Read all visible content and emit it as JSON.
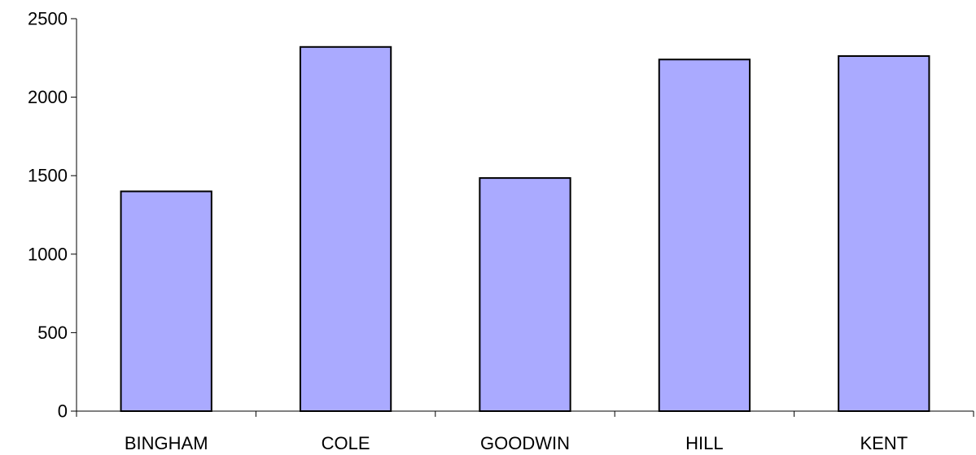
{
  "chart_data": {
    "type": "bar",
    "title": "",
    "xlabel": "",
    "ylabel": "",
    "categories": [
      "BINGHAM",
      "COLE",
      "GOODWIN",
      "HILL",
      "KENT"
    ],
    "values": [
      1400,
      2320,
      1485,
      2240,
      2262
    ],
    "ylim": [
      0,
      2500
    ],
    "yticks": [
      "0",
      "500",
      "1000",
      "1500",
      "2000",
      "2500"
    ],
    "grid": false,
    "legend": "none",
    "colors": {
      "bar_fill": "#aaaaff",
      "bar_stroke": "#000000",
      "axis": "#000000"
    }
  }
}
